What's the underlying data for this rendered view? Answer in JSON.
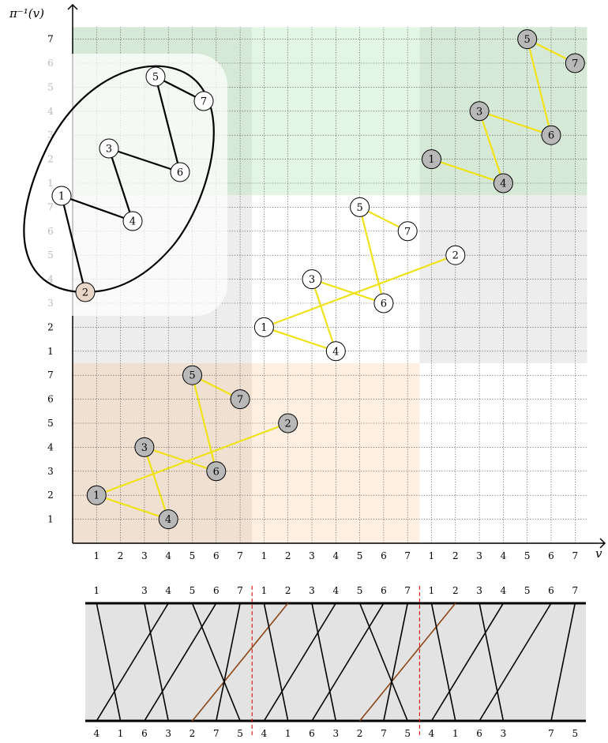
{
  "axes": {
    "y_title": "π⁻¹(v)",
    "x_title": "v",
    "x_ticks": [
      "1",
      "2",
      "3",
      "4",
      "5",
      "6",
      "7",
      "1",
      "2",
      "3",
      "4",
      "5",
      "6",
      "7",
      "1",
      "2",
      "3",
      "4",
      "5",
      "6",
      "7"
    ],
    "y_ticks_lower": [
      "1",
      "2",
      "3",
      "4",
      "5",
      "6",
      "7"
    ],
    "y_ticks_middle": [
      "1",
      "2",
      "3",
      "4",
      "5",
      "6",
      "7"
    ],
    "y_ticks_upper": [
      "1",
      "2",
      "3",
      "4",
      "5",
      "6",
      "7"
    ]
  },
  "colors": {
    "block_left": "#efe0d1",
    "block_mid_bottom": "#fff0e1",
    "block_mid_band": "#ededed",
    "block_upper_left": "#d6e9d6",
    "block_upper_mid": "#e3f6e3",
    "edge_yellow": "#f0e218",
    "crossing_brown": "#8b4513",
    "node_gray": "#b8b8b8",
    "node_tan": "#e8d6c8",
    "band_gray": "#e3e3e3"
  },
  "graph_copies": [
    {
      "id": "copy-1",
      "style": "gray",
      "nodes": [
        {
          "label": "1",
          "v": 1,
          "p": 2
        },
        {
          "label": "2",
          "v": 9,
          "p": 5
        },
        {
          "label": "3",
          "v": 3,
          "p": 4
        },
        {
          "label": "4",
          "v": 4,
          "p": 1
        },
        {
          "label": "5",
          "v": 5,
          "p": 7
        },
        {
          "label": "6",
          "v": 6,
          "p": 3
        },
        {
          "label": "7",
          "v": 7,
          "p": 6
        }
      ]
    },
    {
      "id": "copy-2",
      "style": "white",
      "nodes": [
        {
          "label": "1",
          "v": 8,
          "p": 9
        },
        {
          "label": "2",
          "v": 16,
          "p": 12
        },
        {
          "label": "3",
          "v": 10,
          "p": 11
        },
        {
          "label": "4",
          "v": 11,
          "p": 8
        },
        {
          "label": "5",
          "v": 12,
          "p": 14
        },
        {
          "label": "6",
          "v": 13,
          "p": 10
        },
        {
          "label": "7",
          "v": 14,
          "p": 13
        }
      ]
    },
    {
      "id": "copy-3",
      "style": "gray",
      "nodes": [
        {
          "label": "1",
          "v": 15,
          "p": 16
        },
        {
          "label": "3",
          "v": 17,
          "p": 18
        },
        {
          "label": "4",
          "v": 18,
          "p": 15
        },
        {
          "label": "5",
          "v": 19,
          "p": 21
        },
        {
          "label": "6",
          "v": 20,
          "p": 17
        },
        {
          "label": "7",
          "v": 21,
          "p": 20
        }
      ]
    }
  ],
  "graph_edges": [
    [
      "1",
      "2"
    ],
    [
      "1",
      "4"
    ],
    [
      "3",
      "4"
    ],
    [
      "3",
      "6"
    ],
    [
      "5",
      "6"
    ],
    [
      "5",
      "7"
    ]
  ],
  "inset_nodes": [
    {
      "label": "1",
      "style": "white"
    },
    {
      "label": "2",
      "style": "tan"
    },
    {
      "label": "3",
      "style": "white"
    },
    {
      "label": "4",
      "style": "white"
    },
    {
      "label": "5",
      "style": "white"
    },
    {
      "label": "6",
      "style": "white"
    },
    {
      "label": "7",
      "style": "white"
    }
  ],
  "permutation_diagram": {
    "top_labels": [
      "1",
      "",
      "3",
      "4",
      "5",
      "6",
      "7",
      "1",
      "2",
      "3",
      "4",
      "5",
      "6",
      "7",
      "1",
      "2",
      "3",
      "4",
      "5",
      "6",
      "7"
    ],
    "bottom_labels": [
      "4",
      "1",
      "6",
      "3",
      "2",
      "7",
      "5",
      "4",
      "1",
      "6",
      "3",
      "2",
      "7",
      "5",
      "4",
      "1",
      "6",
      "3",
      "",
      "7",
      "5"
    ]
  }
}
